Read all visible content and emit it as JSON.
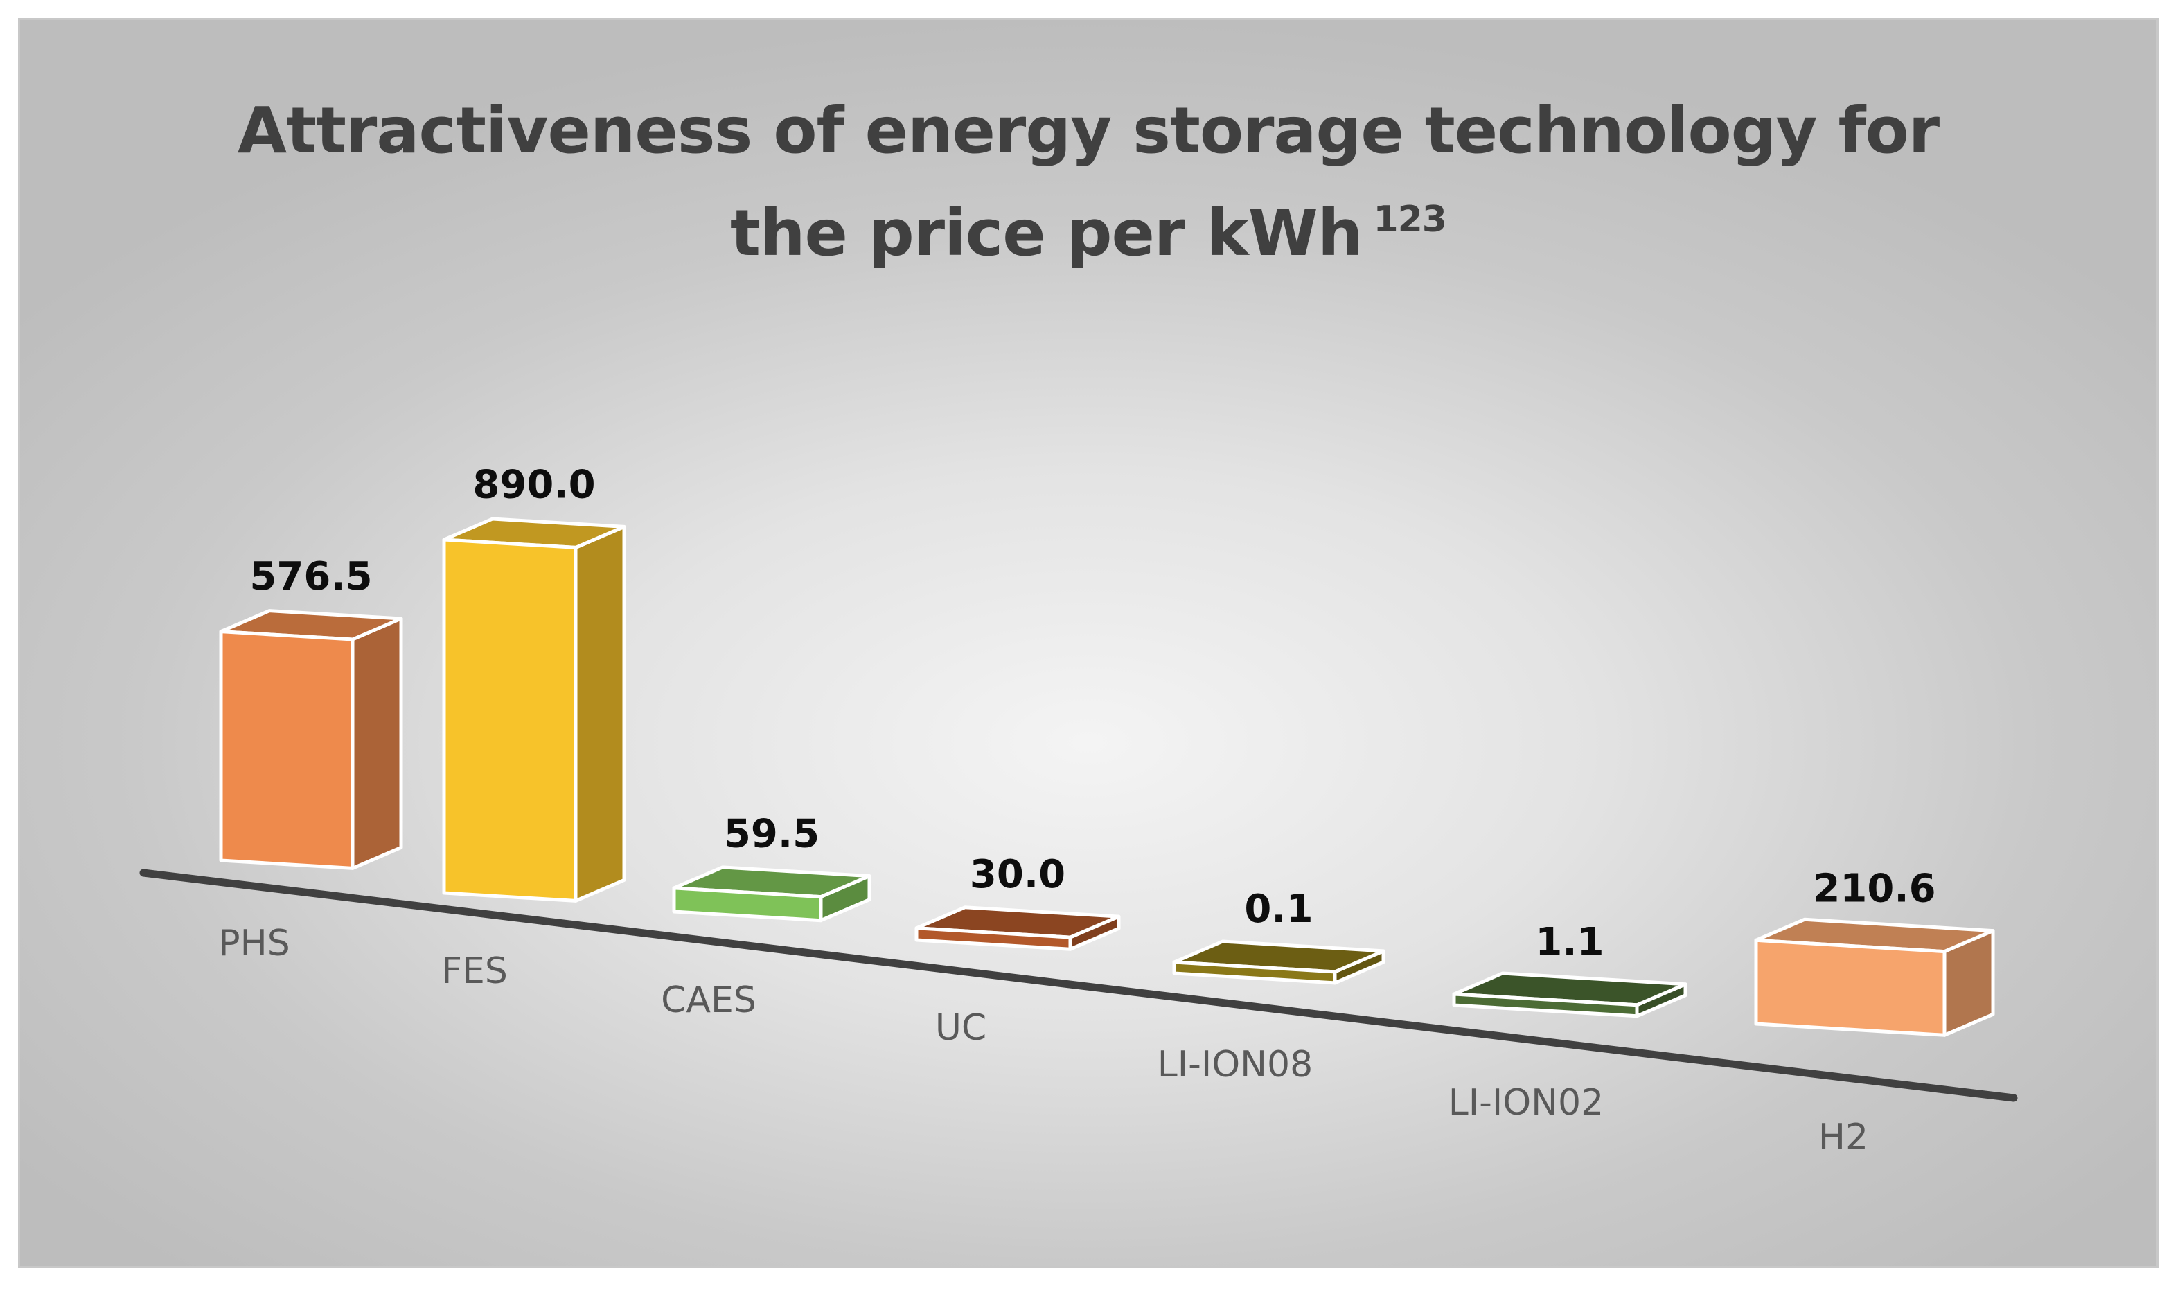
{
  "chart_data": {
    "type": "bar",
    "title": "Attractiveness of energy storage technology for",
    "title_line2": "the price per kWh",
    "title_superscript": "123",
    "categories": [
      "PHS",
      "FES",
      "CAES",
      "UC",
      "LI-ION08",
      "LI-ION02",
      "H2"
    ],
    "values": [
      576.5,
      890.0,
      59.5,
      30.0,
      0.1,
      1.1,
      210.6
    ],
    "value_labels": [
      "576.5",
      "890.0",
      "59.5",
      "30.0",
      "0.1",
      "1.1",
      "210.6"
    ],
    "colors": [
      "#ee8a4c",
      "#f7c32a",
      "#7fc258",
      "#b2582a",
      "#8a7818",
      "#4c6c35",
      "#f6a46c"
    ],
    "xlabel": "",
    "ylabel": "",
    "grid": false,
    "legend": "none",
    "style": "3d-perspective-column"
  }
}
